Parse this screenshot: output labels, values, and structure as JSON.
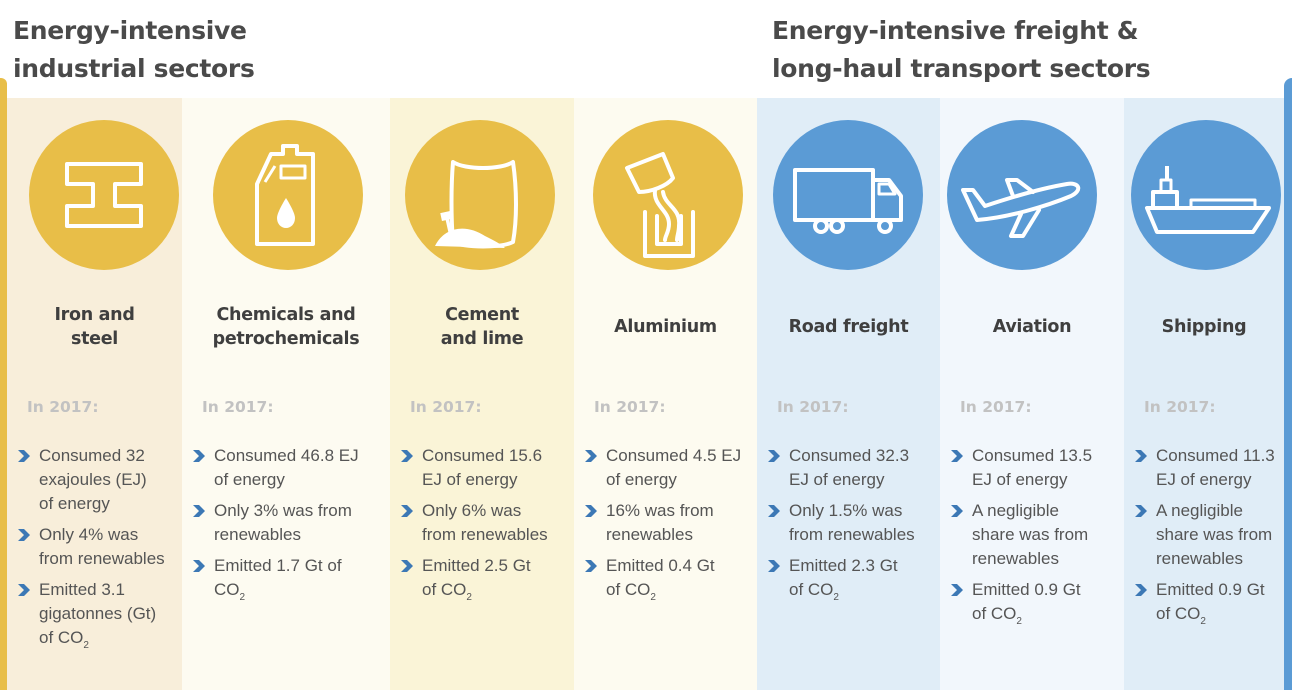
{
  "headings": {
    "industrial": [
      "Energy-intensive",
      "industrial sectors"
    ],
    "transport": [
      "Energy-intensive freight &",
      "long-haul transport sectors"
    ]
  },
  "colors": {
    "industrial_icon": "#e8be48",
    "transport_icon": "#5b9bd5",
    "bullet_arrow": "#3c78b5",
    "year_label": "#c2c2c2",
    "industrial_bg": [
      "#f8eeda",
      "#fdfbf1",
      "#faf4d7",
      "#fdfbf0"
    ],
    "transport_bg": [
      "#e0edf7",
      "#f2f7fc",
      "#e0edf7"
    ]
  },
  "sectors": [
    {
      "name": [
        "Iron and",
        "steel"
      ],
      "icon": "steel-beam-icon",
      "year_label": "In 2017:",
      "bullets": [
        {
          "text": [
            "Consumed 32",
            "exajoules (EJ)",
            "of energy"
          ]
        },
        {
          "text": [
            "Only 4% was",
            "from renewables"
          ]
        },
        {
          "text": [
            "Emitted 3.1",
            "gigatonnes (Gt)",
            "of CO"
          ],
          "sub": "2"
        }
      ]
    },
    {
      "name": [
        "Chemicals and",
        "petrochemicals"
      ],
      "icon": "canister-droplet-icon",
      "year_label": "In 2017:",
      "bullets": [
        {
          "text": [
            "Consumed 46.8 EJ",
            "of energy"
          ]
        },
        {
          "text": [
            "Only 3% was from",
            "renewables"
          ]
        },
        {
          "text": [
            "Emitted 1.7 Gt of",
            "CO"
          ],
          "sub": "2"
        }
      ]
    },
    {
      "name": [
        "Cement",
        "and lime"
      ],
      "icon": "cement-bag-icon",
      "year_label": "In 2017:",
      "bullets": [
        {
          "text": [
            "Consumed 15.6",
            "EJ of energy"
          ]
        },
        {
          "text": [
            "Only 6% was",
            "from renewables"
          ]
        },
        {
          "text": [
            "Emitted 2.5 Gt",
            "of CO"
          ],
          "sub": "2"
        }
      ]
    },
    {
      "name": [
        "Aluminium"
      ],
      "icon": "pouring-crucible-icon",
      "year_label": "In 2017:",
      "bullets": [
        {
          "text": [
            "Consumed 4.5 EJ",
            "of energy"
          ]
        },
        {
          "text": [
            "16% was from",
            "renewables"
          ]
        },
        {
          "text": [
            "Emitted 0.4 Gt",
            "of CO"
          ],
          "sub": "2"
        }
      ]
    },
    {
      "name": [
        "Road freight"
      ],
      "icon": "truck-icon",
      "year_label": "In 2017:",
      "bullets": [
        {
          "text": [
            "Consumed 32.3",
            "EJ of energy"
          ]
        },
        {
          "text": [
            "Only 1.5% was",
            "from renewables"
          ]
        },
        {
          "text": [
            "Emitted 2.3 Gt",
            "of CO"
          ],
          "sub": "2"
        }
      ]
    },
    {
      "name": [
        "Aviation"
      ],
      "icon": "airplane-icon",
      "year_label": "In 2017:",
      "bullets": [
        {
          "text": [
            "Consumed 13.5",
            "EJ of energy"
          ]
        },
        {
          "text": [
            "A negligible",
            "share was from",
            "renewables"
          ]
        },
        {
          "text": [
            "Emitted 0.9 Gt",
            "of CO"
          ],
          "sub": "2"
        }
      ]
    },
    {
      "name": [
        "Shipping"
      ],
      "icon": "ship-icon",
      "year_label": "In 2017:",
      "bullets": [
        {
          "text": [
            "Consumed 11.3",
            "EJ of energy"
          ]
        },
        {
          "text": [
            "A negligible",
            "share was from",
            "renewables"
          ]
        },
        {
          "text": [
            "Emitted 0.9 Gt",
            "of CO"
          ],
          "sub": "2"
        }
      ]
    }
  ]
}
